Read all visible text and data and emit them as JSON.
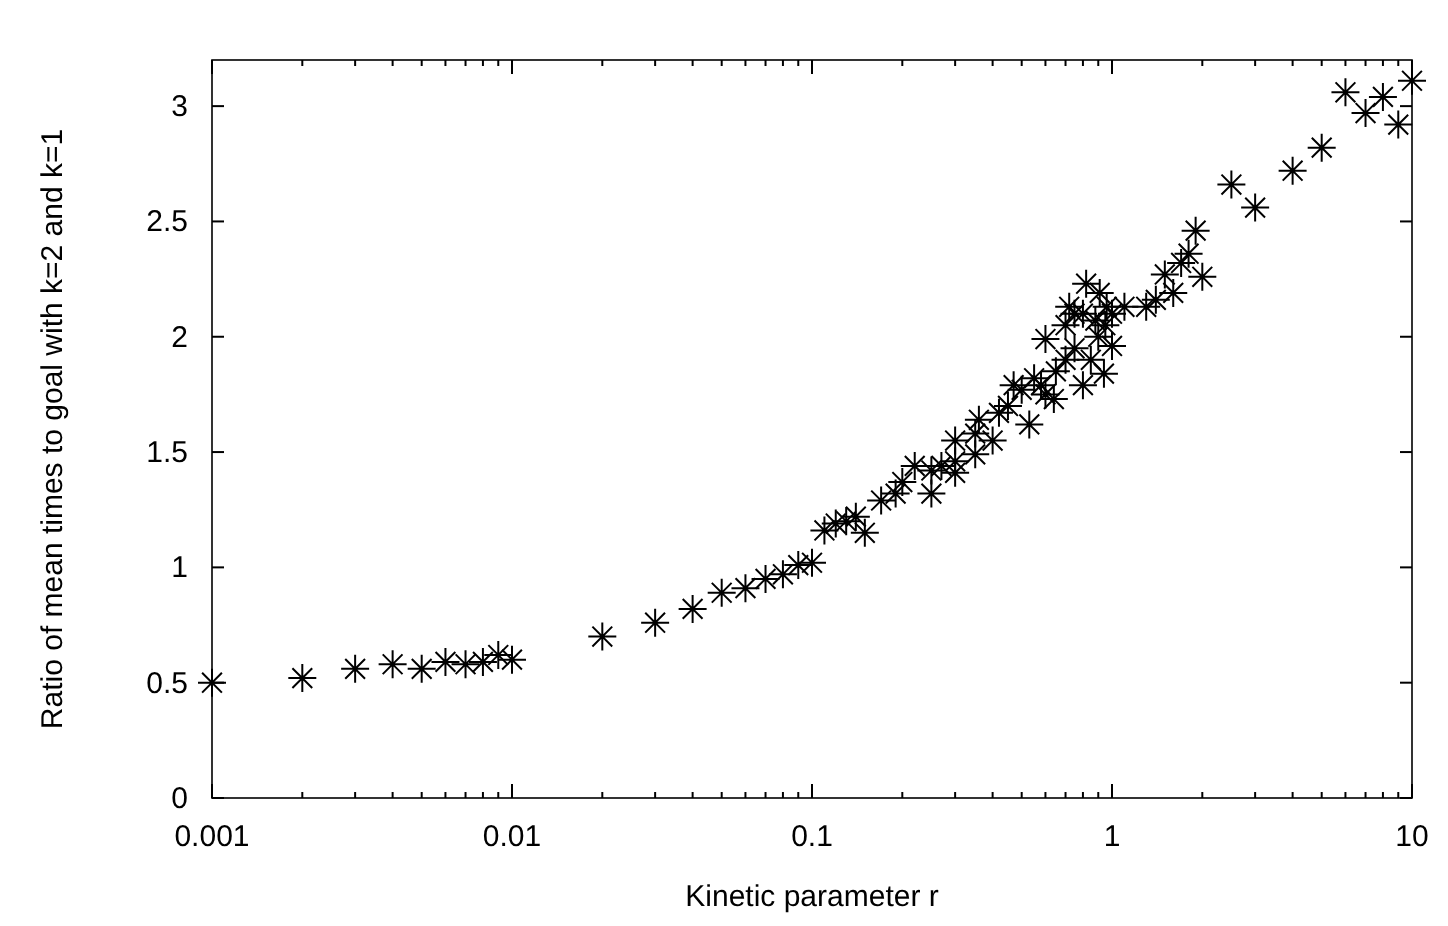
{
  "chart_data": {
    "type": "scatter",
    "xlabel": "Kinetic parameter r",
    "ylabel": "Ratio of mean times to goal with k=2 and k=1",
    "log": "x",
    "marker": "cross",
    "xlim": [
      0.001,
      10
    ],
    "xticks": [
      0.001,
      0.01,
      0.1,
      1,
      10
    ],
    "ylim": [
      0,
      3.2
    ],
    "yticks": [
      0,
      0.5,
      1,
      1.5,
      2,
      2.5,
      3
    ],
    "series": [
      {
        "color": "#000000",
        "x": [
          0.001,
          0.002,
          0.003,
          0.004,
          0.005,
          0.006,
          0.007,
          0.008,
          0.009,
          0.01,
          0.02,
          0.03,
          0.04,
          0.05,
          0.06,
          0.07,
          0.08,
          0.09,
          0.1,
          0.11,
          0.12,
          0.13,
          0.14,
          0.15,
          0.17,
          0.19,
          0.2,
          0.22,
          0.25,
          0.25,
          0.27,
          0.3,
          0.3,
          0.3,
          0.35,
          0.35,
          0.36,
          0.4,
          0.42,
          0.45,
          0.47,
          0.5,
          0.53,
          0.55,
          0.58,
          0.6,
          0.6,
          0.64,
          0.65,
          0.7,
          0.7,
          0.72,
          0.75,
          0.75,
          0.8,
          0.8,
          0.82,
          0.85,
          0.88,
          0.9,
          0.91,
          0.94,
          0.95,
          0.96,
          1,
          1,
          1.1,
          1.3,
          1.4,
          1.5,
          1.6,
          1.7,
          1.8,
          1.9,
          2,
          2.5,
          3,
          4,
          5,
          6,
          7,
          8,
          9,
          10
        ],
        "values": [
          0.5,
          0.52,
          0.56,
          0.58,
          0.56,
          0.59,
          0.58,
          0.59,
          0.62,
          0.6,
          0.7,
          0.76,
          0.82,
          0.89,
          0.91,
          0.95,
          0.97,
          1.01,
          1.02,
          1.16,
          1.19,
          1.2,
          1.22,
          1.15,
          1.29,
          1.32,
          1.37,
          1.44,
          1.32,
          1.42,
          1.44,
          1.41,
          1.46,
          1.55,
          1.49,
          1.58,
          1.64,
          1.55,
          1.67,
          1.7,
          1.79,
          1.77,
          1.62,
          1.82,
          1.79,
          1.99,
          1.75,
          1.73,
          1.85,
          1.9,
          2.05,
          2.13,
          1.95,
          2.1,
          1.79,
          2.1,
          2.23,
          1.9,
          2.07,
          2,
          2.19,
          1.84,
          2.05,
          2.13,
          1.96,
          2.1,
          2.13,
          2.13,
          2.16,
          2.27,
          2.19,
          2.32,
          2.36,
          2.46,
          2.26,
          2.66,
          2.56,
          2.72,
          2.82,
          3.06,
          2.97,
          3.04,
          2.92,
          3.11
        ]
      }
    ]
  }
}
